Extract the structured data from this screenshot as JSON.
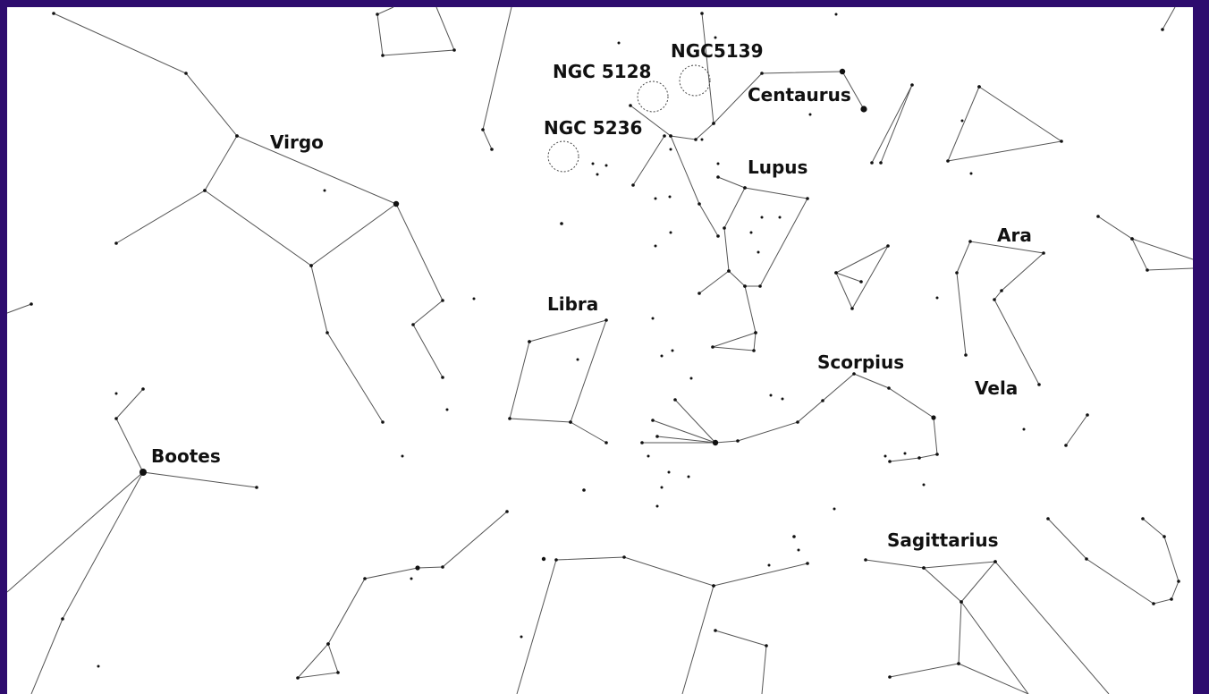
{
  "constellations": [
    "Virgo",
    "Centaurus",
    "Lupus",
    "Ara",
    "Libra",
    "Scorpius",
    "Vela",
    "Bootes",
    "Sagittarius"
  ],
  "deep_sky_objects": [
    "NGC 5128",
    "NGC5139",
    "NGC 5236"
  ]
}
